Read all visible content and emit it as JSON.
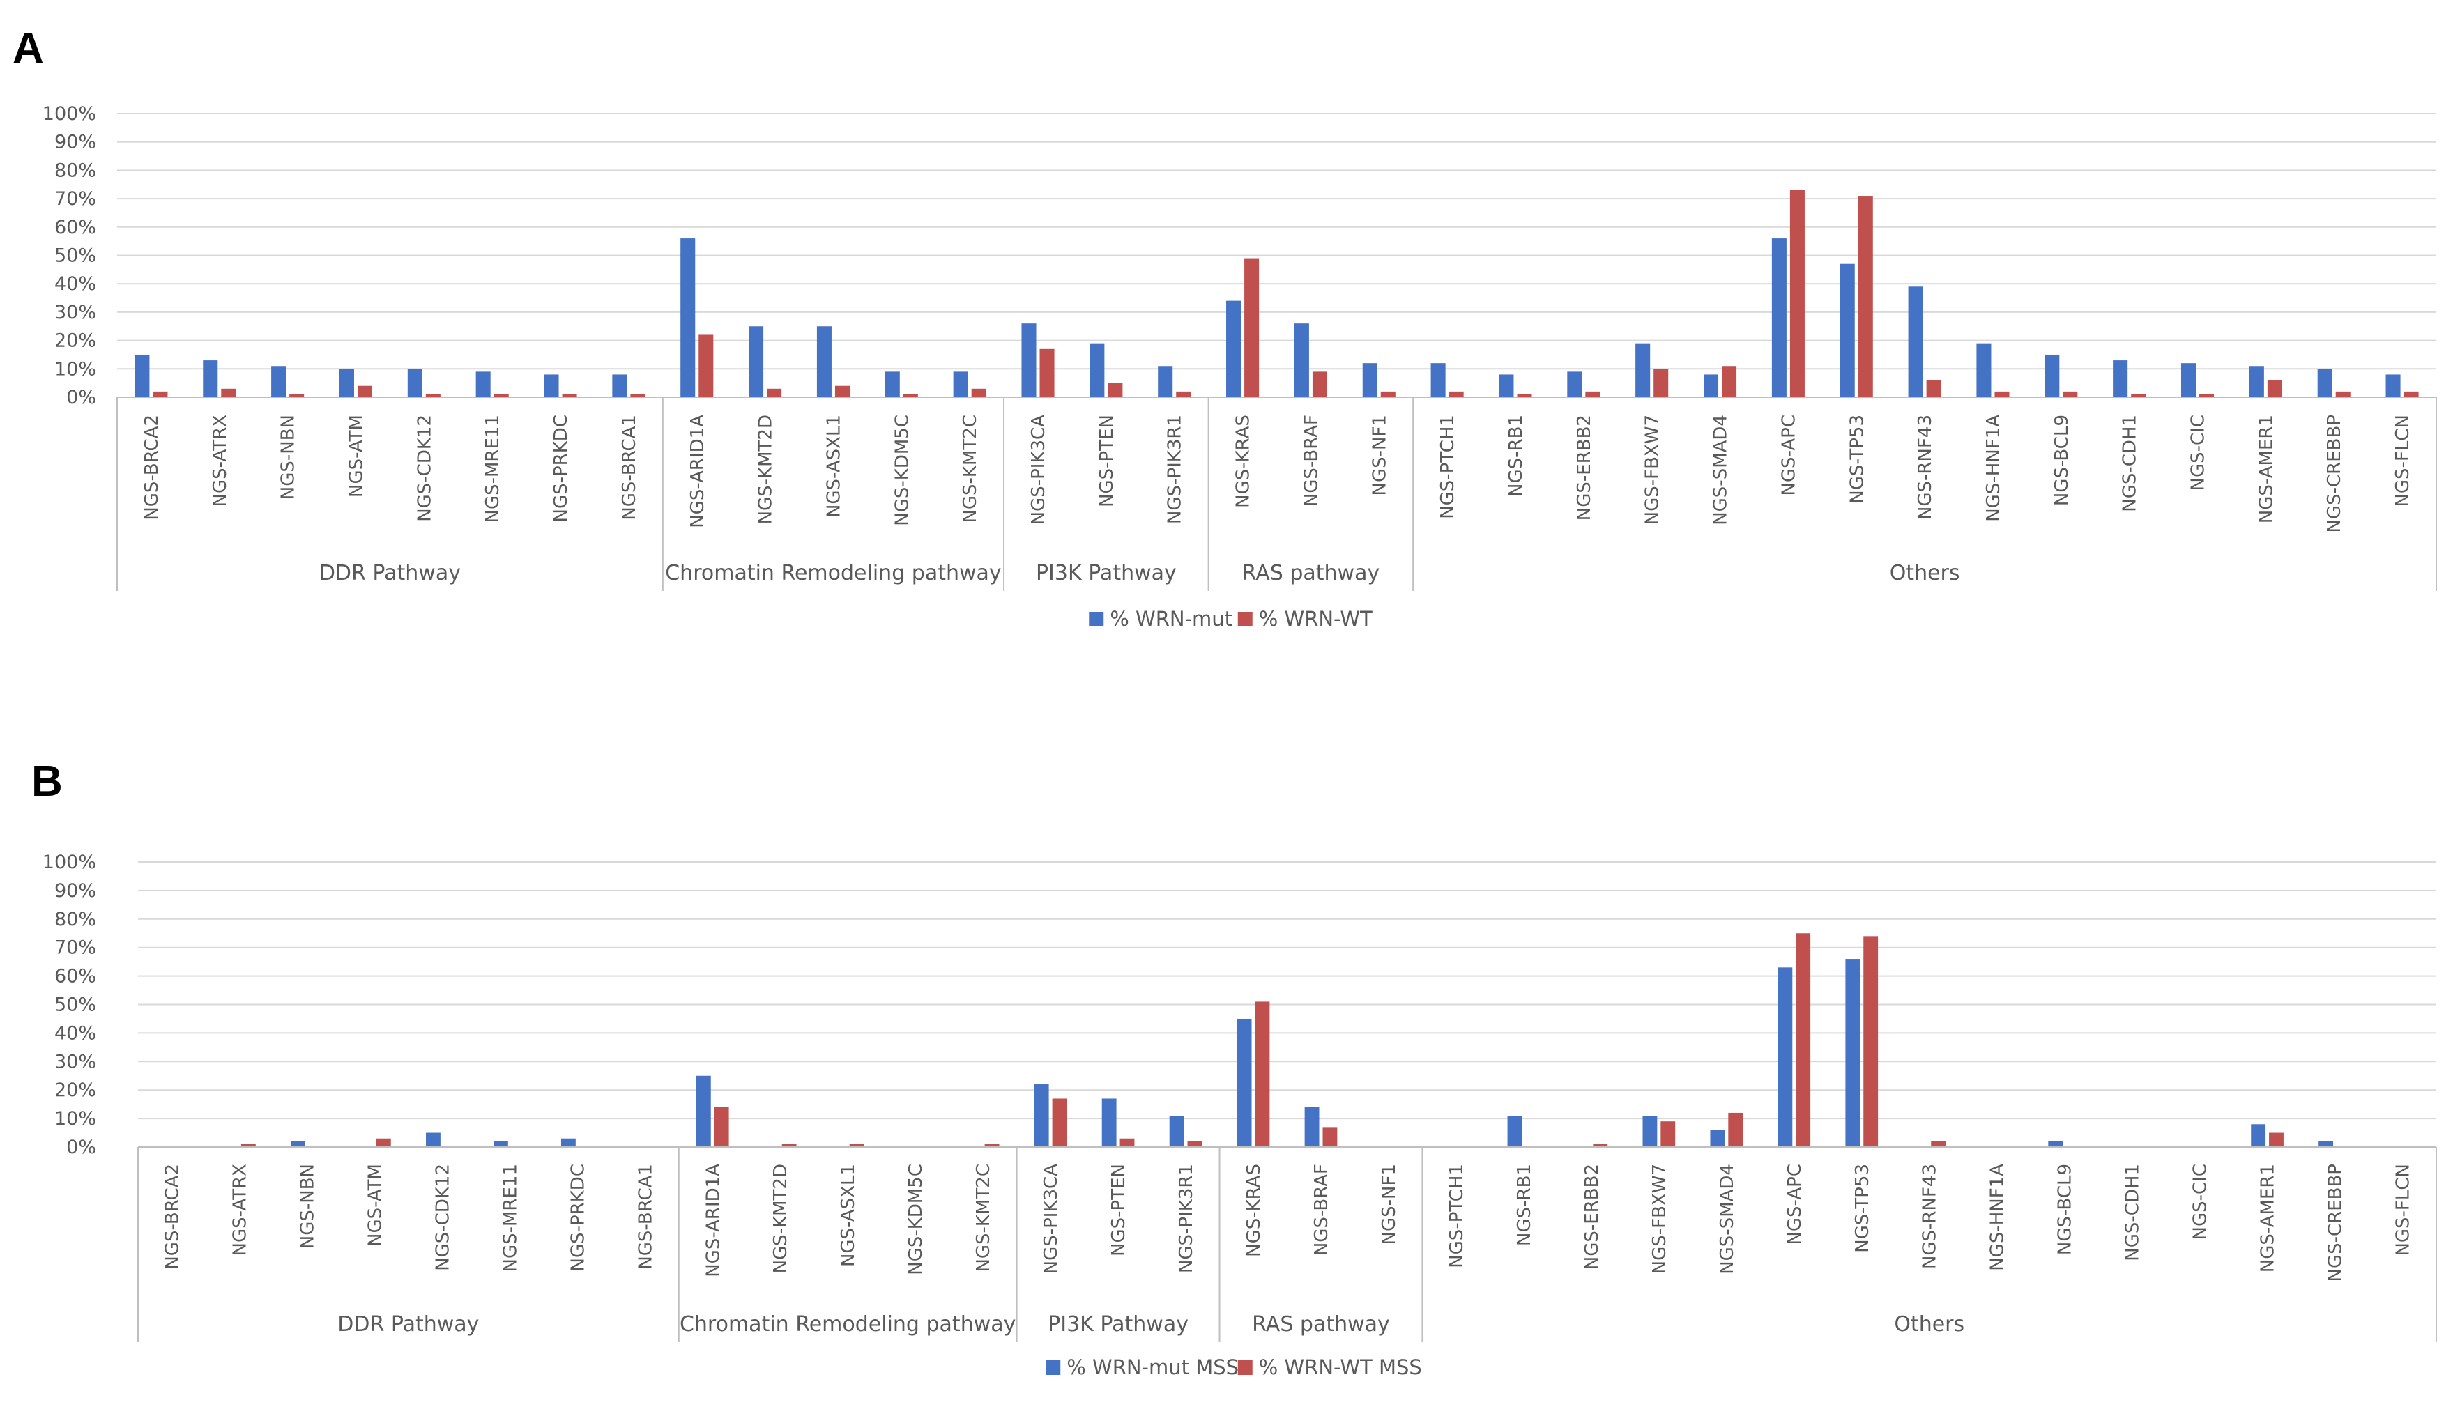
{
  "colors": {
    "series1": "#4472C4",
    "series2": "#C0504D",
    "grid": "#D9D9D9",
    "axis": "#BFBFBF",
    "text": "#595959"
  },
  "chart_data": [
    {
      "panel": "A",
      "type": "bar",
      "title": "",
      "xlabel": "",
      "ylabel": "",
      "ylim": [
        0,
        1
      ],
      "grid": true,
      "legend": "bottom-center",
      "y_ticks": [
        "0%",
        "10%",
        "20%",
        "30%",
        "40%",
        "50%",
        "60%",
        "70%",
        "80%",
        "90%",
        "100%"
      ],
      "categories": [
        "NGS-BRCA2",
        "NGS-ATRX",
        "NGS-NBN",
        "NGS-ATM",
        "NGS-CDK12",
        "NGS-MRE11",
        "NGS-PRKDC",
        "NGS-BRCA1",
        "NGS-ARID1A",
        "NGS-KMT2D",
        "NGS-ASXL1",
        "NGS-KDM5C",
        "NGS-KMT2C",
        "NGS-PIK3CA",
        "NGS-PTEN",
        "NGS-PIK3R1",
        "NGS-KRAS",
        "NGS-BRAF",
        "NGS-NF1",
        "NGS-PTCH1",
        "NGS-RB1",
        "NGS-ERBB2",
        "NGS-FBXW7",
        "NGS-SMAD4",
        "NGS-APC",
        "NGS-TP53",
        "NGS-RNF43",
        "NGS-HNF1A",
        "NGS-BCL9",
        "NGS-CDH1",
        "NGS-CIC",
        "NGS-AMER1",
        "NGS-CREBBP",
        "NGS-FLCN"
      ],
      "groups": [
        {
          "label": "DDR Pathway",
          "count": 8
        },
        {
          "label": "Chromatin Remodeling pathway",
          "count": 5
        },
        {
          "label": "PI3K Pathway",
          "count": 3
        },
        {
          "label": "RAS pathway",
          "count": 3
        },
        {
          "label": "Others",
          "count": 15
        }
      ],
      "series": [
        {
          "name": "% WRN-mut",
          "values": [
            0.15,
            0.13,
            0.11,
            0.1,
            0.1,
            0.09,
            0.08,
            0.08,
            0.56,
            0.25,
            0.25,
            0.09,
            0.09,
            0.26,
            0.19,
            0.11,
            0.34,
            0.26,
            0.12,
            0.12,
            0.08,
            0.09,
            0.19,
            0.08,
            0.56,
            0.47,
            0.39,
            0.19,
            0.15,
            0.13,
            0.12,
            0.11,
            0.1,
            0.08
          ]
        },
        {
          "name": "% WRN-WT",
          "values": [
            0.02,
            0.03,
            0.01,
            0.04,
            0.01,
            0.01,
            0.01,
            0.01,
            0.22,
            0.03,
            0.04,
            0.01,
            0.03,
            0.17,
            0.05,
            0.02,
            0.49,
            0.09,
            0.02,
            0.02,
            0.01,
            0.02,
            0.1,
            0.11,
            0.73,
            0.71,
            0.06,
            0.02,
            0.02,
            0.01,
            0.01,
            0.06,
            0.02,
            0.02
          ]
        }
      ]
    },
    {
      "panel": "B",
      "type": "bar",
      "title": "",
      "xlabel": "",
      "ylabel": "",
      "ylim": [
        0,
        1
      ],
      "grid": true,
      "legend": "bottom-center",
      "y_ticks": [
        "0%",
        "10%",
        "20%",
        "30%",
        "40%",
        "50%",
        "60%",
        "70%",
        "80%",
        "90%",
        "100%"
      ],
      "categories": [
        "NGS-BRCA2",
        "NGS-ATRX",
        "NGS-NBN",
        "NGS-ATM",
        "NGS-CDK12",
        "NGS-MRE11",
        "NGS-PRKDC",
        "NGS-BRCA1",
        "NGS-ARID1A",
        "NGS-KMT2D",
        "NGS-ASXL1",
        "NGS-KDM5C",
        "NGS-KMT2C",
        "NGS-PIK3CA",
        "NGS-PTEN",
        "NGS-PIK3R1",
        "NGS-KRAS",
        "NGS-BRAF",
        "NGS-NF1",
        "NGS-PTCH1",
        "NGS-RB1",
        "NGS-ERBB2",
        "NGS-FBXW7",
        "NGS-SMAD4",
        "NGS-APC",
        "NGS-TP53",
        "NGS-RNF43",
        "NGS-HNF1A",
        "NGS-BCL9",
        "NGS-CDH1",
        "NGS-CIC",
        "NGS-AMER1",
        "NGS-CREBBP",
        "NGS-FLCN"
      ],
      "groups": [
        {
          "label": "DDR Pathway",
          "count": 8
        },
        {
          "label": "Chromatin Remodeling pathway",
          "count": 5
        },
        {
          "label": "PI3K Pathway",
          "count": 3
        },
        {
          "label": "RAS pathway",
          "count": 3
        },
        {
          "label": "Others",
          "count": 15
        }
      ],
      "series": [
        {
          "name": "% WRN-mut MSS",
          "values": [
            0,
            0,
            0.02,
            0,
            0.05,
            0.02,
            0.03,
            0,
            0.25,
            0,
            0,
            0,
            0,
            0.22,
            0.17,
            0.11,
            0.45,
            0.14,
            0,
            0,
            0.11,
            0,
            0.11,
            0.06,
            0.63,
            0.66,
            0,
            0,
            0.02,
            0,
            0,
            0.08,
            0.02,
            0
          ]
        },
        {
          "name": "% WRN-WT MSS",
          "values": [
            0,
            0.01,
            0,
            0.03,
            0,
            0,
            0,
            0,
            0.14,
            0.01,
            0.01,
            0,
            0.01,
            0.17,
            0.03,
            0.02,
            0.51,
            0.07,
            0,
            0,
            0,
            0.01,
            0.09,
            0.12,
            0.75,
            0.74,
            0.02,
            0,
            0,
            0,
            0,
            0.05,
            0,
            0
          ]
        }
      ]
    }
  ]
}
